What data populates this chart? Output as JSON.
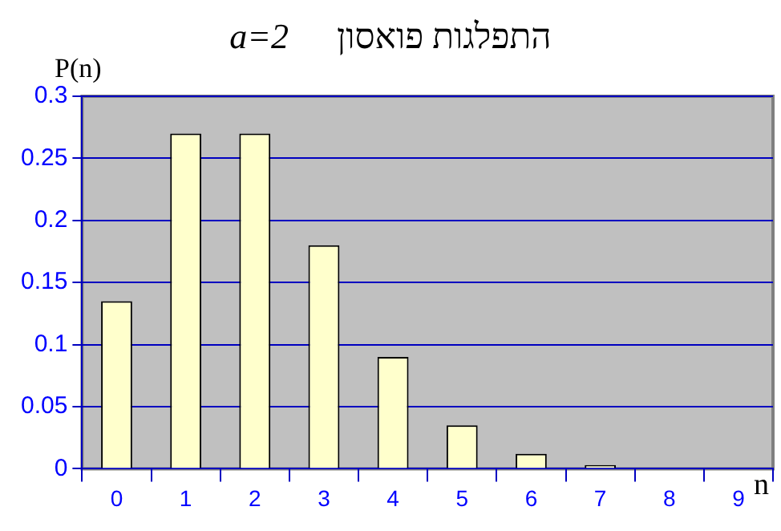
{
  "chart_data": {
    "type": "bar",
    "title": "התפלגות פואסון",
    "subtitle": "a=2",
    "xlabel": "n",
    "ylabel": "P(n)",
    "categories": [
      "0",
      "1",
      "2",
      "3",
      "4",
      "5",
      "6",
      "7",
      "8",
      "9"
    ],
    "values": [
      0.135,
      0.27,
      0.27,
      0.18,
      0.09,
      0.035,
      0.012,
      0.003,
      0,
      0
    ],
    "color": "#ffffcc",
    "ylim": [
      0,
      0.3
    ],
    "yticks": [
      0,
      0.05,
      0.1,
      0.15,
      0.2,
      0.25,
      0.3
    ],
    "grid": "y",
    "legend": false
  }
}
